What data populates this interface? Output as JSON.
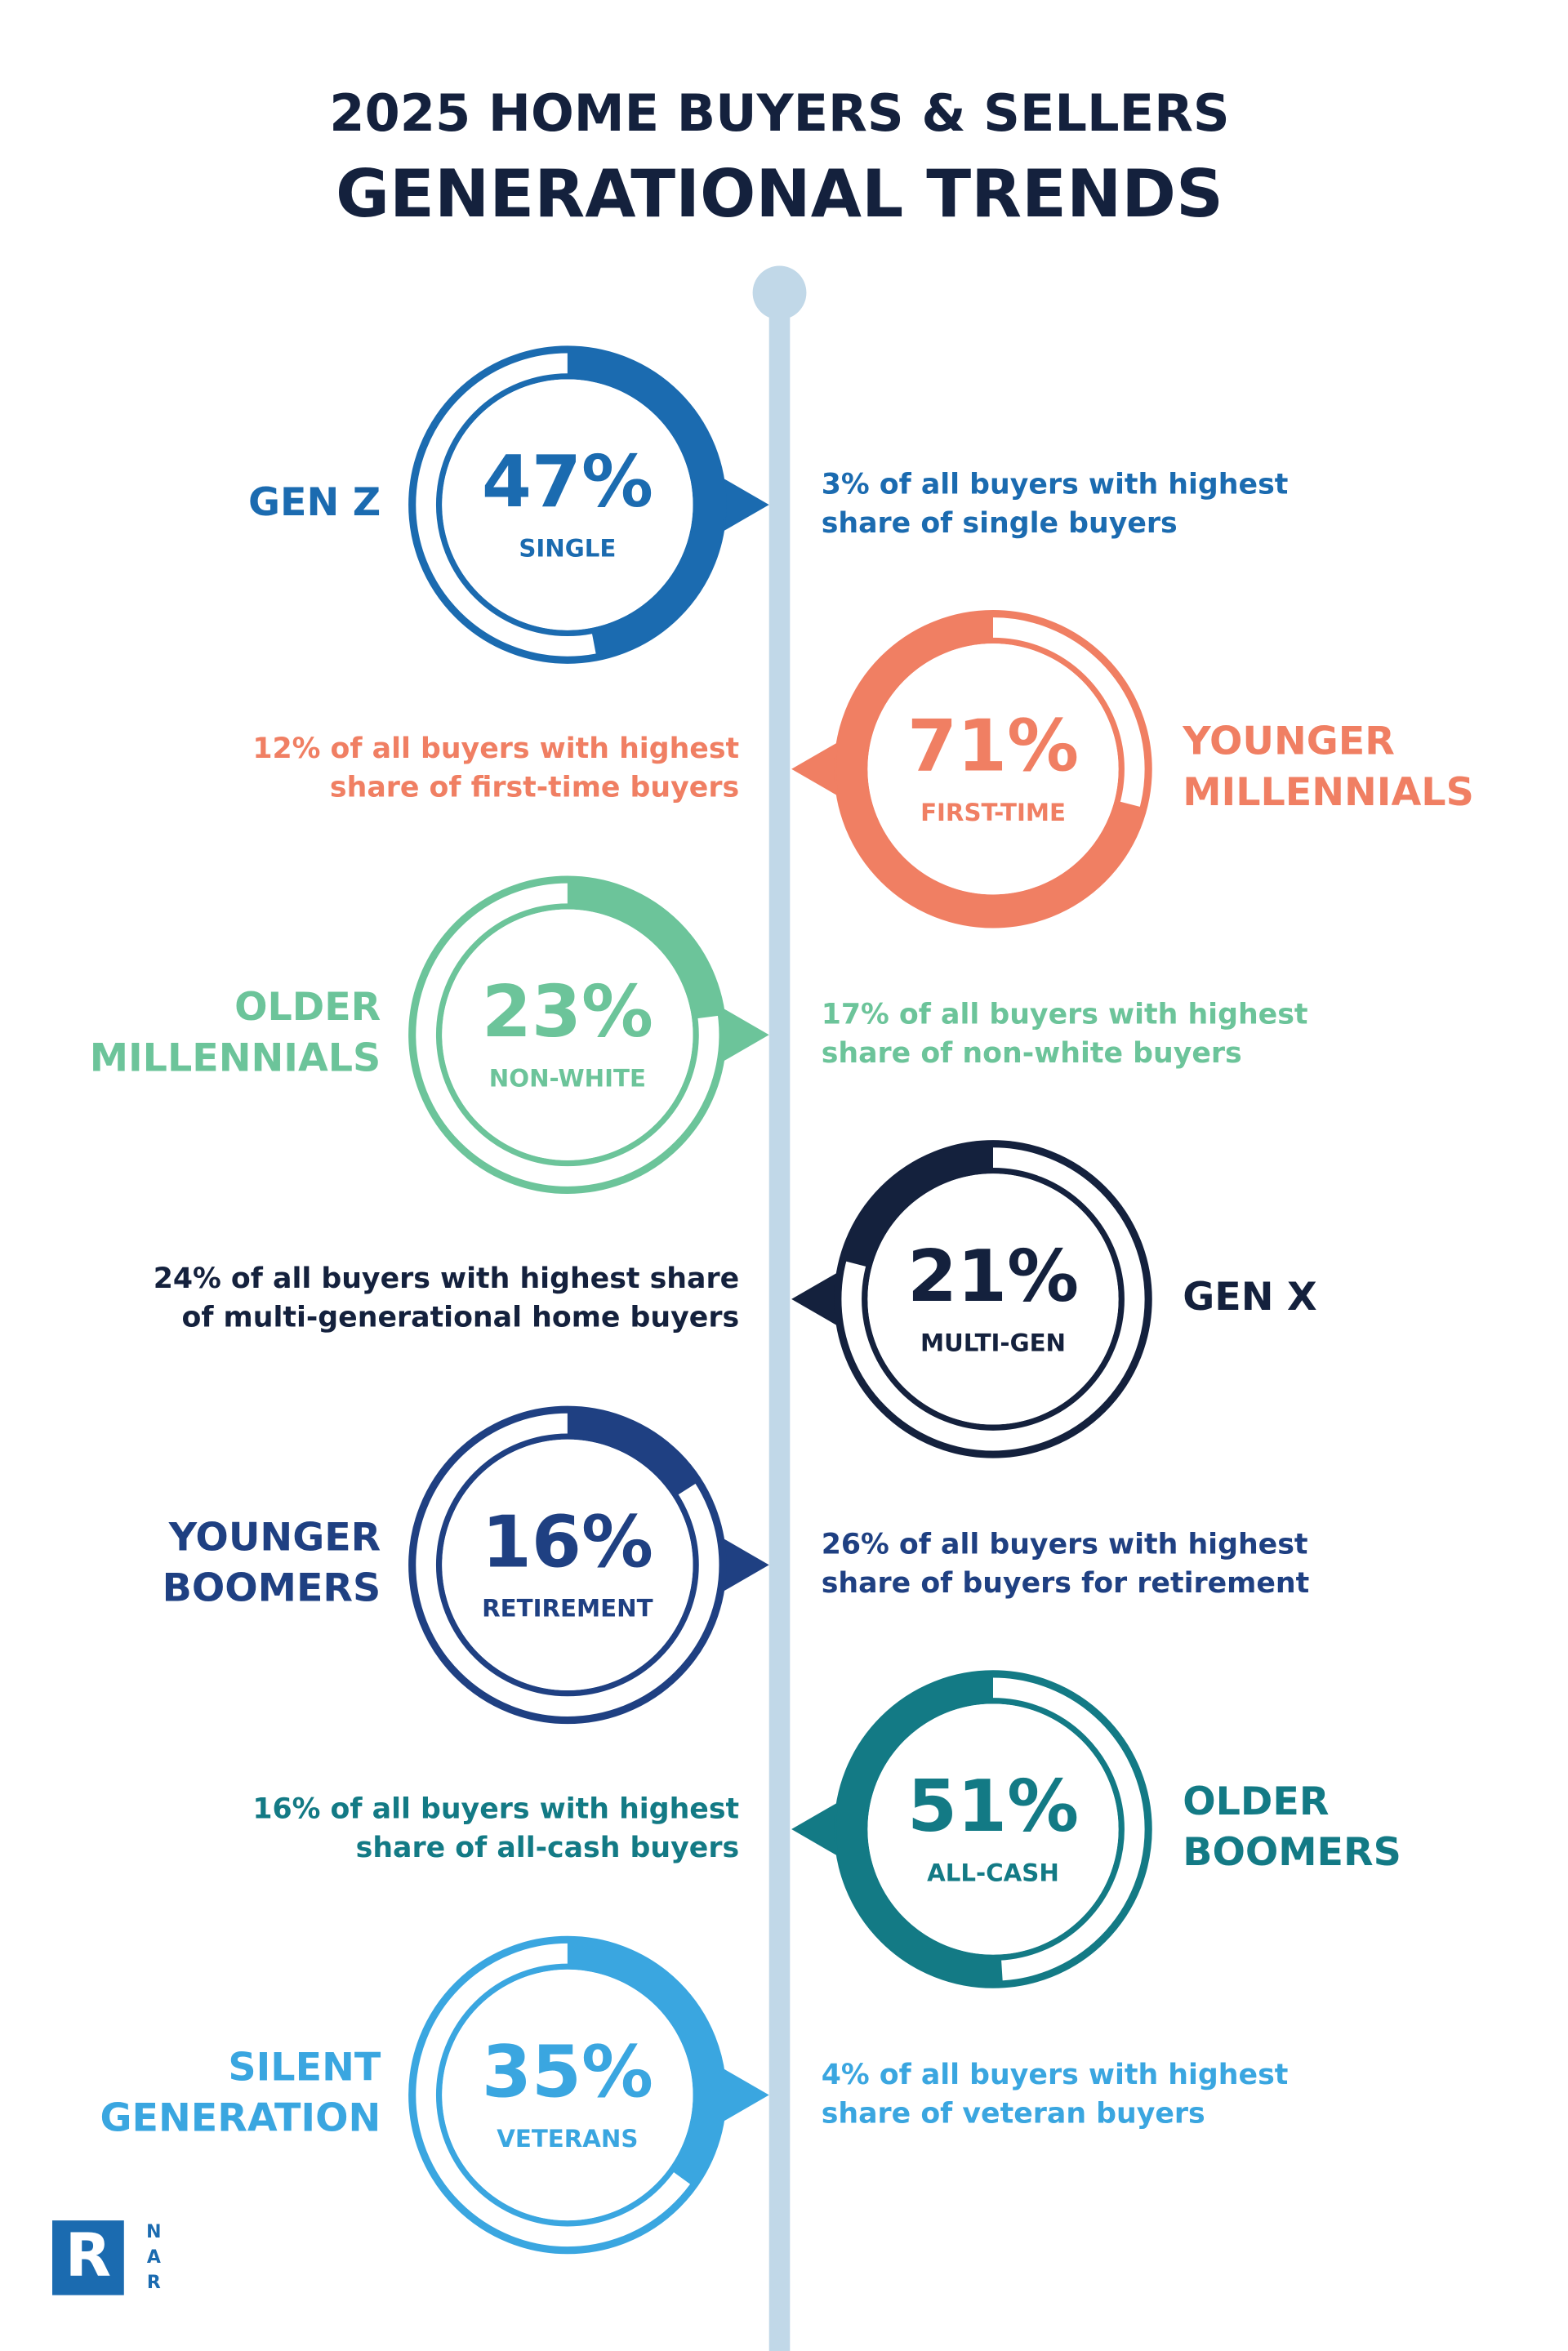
{
  "header": {
    "title_line1": "2025 HOME BUYERS & SELLERS",
    "title_line2": "GENERATIONAL TRENDS"
  },
  "items": [
    {
      "generation": [
        "GEN Z"
      ],
      "value": 47,
      "value_label": "47%",
      "label": "SINGLE",
      "description": [
        "3% of all buyers with highest",
        "share of single buyers"
      ],
      "color": "#1b6bb0"
    },
    {
      "generation": [
        "YOUNGER",
        "MILLENNIALS"
      ],
      "value": 71,
      "value_label": "71%",
      "label": "FIRST-TIME",
      "description": [
        "12% of all buyers with highest",
        "share of first-time buyers"
      ],
      "color": "#f07f63"
    },
    {
      "generation": [
        "OLDER",
        "MILLENNIALS"
      ],
      "value": 23,
      "value_label": "23%",
      "label": "NON-WHITE",
      "description": [
        "17% of all buyers with highest",
        "share of non-white buyers"
      ],
      "color": "#6cc49a"
    },
    {
      "generation": [
        "GEN X"
      ],
      "value": 21,
      "value_label": "21%",
      "label": "MULTI-GEN",
      "description": [
        "24% of all buyers with highest share",
        "of multi-generational home buyers"
      ],
      "color": "#14213d"
    },
    {
      "generation": [
        "YOUNGER",
        "BOOMERS"
      ],
      "value": 16,
      "value_label": "16%",
      "label": "RETIREMENT",
      "description": [
        "26% of all buyers with highest",
        "share of buyers for retirement"
      ],
      "color": "#1f4082"
    },
    {
      "generation": [
        "OLDER",
        "BOOMERS"
      ],
      "value": 51,
      "value_label": "51%",
      "label": "ALL-CASH",
      "description": [
        "16% of all buyers with highest",
        "share of all-cash buyers"
      ],
      "color": "#137a85"
    },
    {
      "generation": [
        "SILENT",
        "GENERATION"
      ],
      "value": 35,
      "value_label": "35%",
      "label": "VETERANS",
      "description": [
        "4% of all buyers with highest",
        "share of veteran buyers"
      ],
      "color": "#3aa6e0"
    }
  ],
  "logo": {
    "mark": "R",
    "letters": [
      "N",
      "A",
      "R"
    ]
  }
}
